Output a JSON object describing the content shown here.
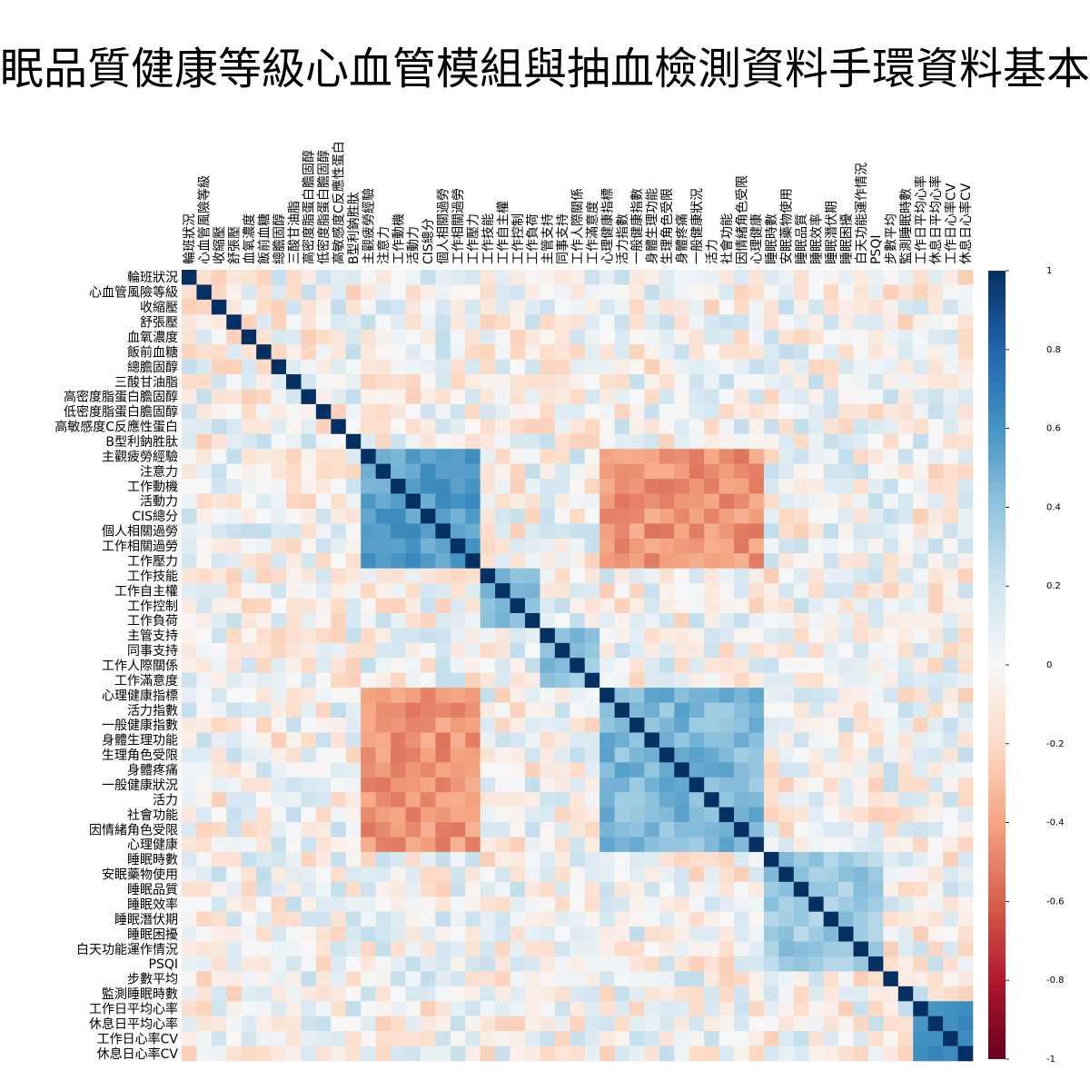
{
  "chart_data": {
    "type": "heatmap",
    "title": "眠品質健康等級心血管模組與抽血檢測資料手環資料基本",
    "variables": [
      "輪班狀況",
      "心血管風險等級",
      "收縮壓",
      "舒張壓",
      "血氧濃度",
      "飯前血糖",
      "總膽固醇",
      "三酸甘油脂",
      "高密度脂蛋白膽固醇",
      "低密度脂蛋白膽固醇",
      "高敏感度C反應性蛋白",
      "B型利鈉胜肽",
      "主觀疲勞經驗",
      "注意力",
      "工作動機",
      "活動力",
      "CIS總分",
      "個人相關過勞",
      "工作相關過勞",
      "工作壓力",
      "工作技能",
      "工作自主權",
      "工作控制",
      "工作負荷",
      "主管支持",
      "同事支持",
      "工作人際關係",
      "工作滿意度",
      "心理健康指標",
      "活力指數",
      "一般健康指數",
      "身體生理功能",
      "生理角色受限",
      "身體疼痛",
      "一般健康狀況",
      "活力",
      "社會功能",
      "因情緒角色受限",
      "心理健康",
      "睡眠時數",
      "安眠藥物使用",
      "睡眠品質",
      "睡眠效率",
      "睡眠潛伏期",
      "睡眠困擾",
      "白天功能運作情況",
      "PSQI",
      "步數平均",
      "監測睡眠時數",
      "工作日平均心率",
      "休息日平均心率",
      "工作日心率CV",
      "休息日心率CV"
    ],
    "colorbar": {
      "ticks": [
        "1",
        "0.8",
        "0.6",
        "0.4",
        "0.2",
        "0",
        "-0.2",
        "-0.4",
        "-0.6",
        "-0.8",
        "-1"
      ],
      "range": [
        -1,
        1
      ]
    },
    "matrix_values_legible": false
  },
  "colors": {
    "positive": "#053061",
    "neutral": "#f7f7f7",
    "negative": "#67001f"
  }
}
